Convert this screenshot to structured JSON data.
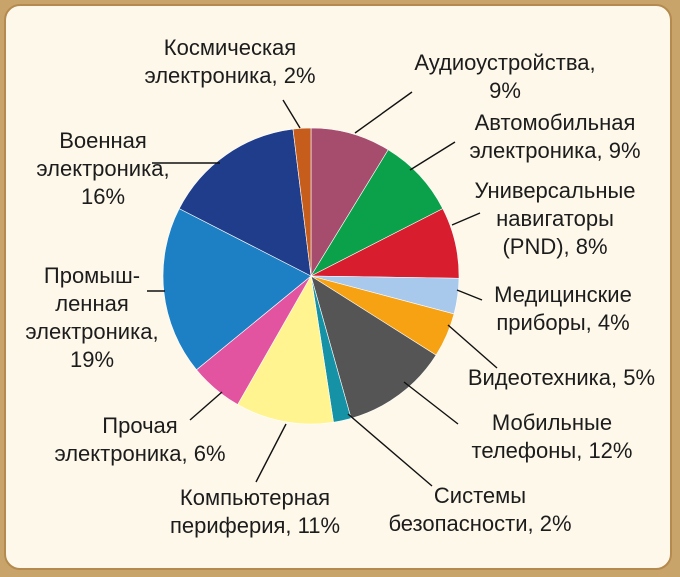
{
  "chart_data": {
    "type": "pie",
    "title": "",
    "slices": [
      {
        "label": "Аудиоустройства, 9%",
        "lines": [
          "Аудиоустройства,",
          "9%"
        ],
        "value": 9,
        "color": "#a64d6e"
      },
      {
        "label": "Автомобильная электроника, 9%",
        "lines": [
          "Автомобильная",
          "электроника, 9%"
        ],
        "value": 9,
        "color": "#0aa14a"
      },
      {
        "label": "Универсальные навигаторы (PND), 8%",
        "lines": [
          "Универсальные",
          "навигаторы",
          "(PND), 8%"
        ],
        "value": 8,
        "color": "#d81d2e"
      },
      {
        "label": "Медицинские приборы, 4%",
        "lines": [
          "Медицинские",
          "приборы, 4%"
        ],
        "value": 4,
        "color": "#a8c8ec"
      },
      {
        "label": "Видеотехника, 5%",
        "lines": [
          "Видеотехника, 5%"
        ],
        "value": 5,
        "color": "#f6a213"
      },
      {
        "label": "Мобильные телефоны, 12%",
        "lines": [
          "Мобильные",
          "телефоны, 12%"
        ],
        "value": 12,
        "color": "#555555"
      },
      {
        "label": "Системы безопасности, 2%",
        "lines": [
          "Системы",
          "безопасности, 2%"
        ],
        "value": 2,
        "color": "#1592a5"
      },
      {
        "label": "Компьютерная периферия, 11%",
        "lines": [
          "Компьютерная",
          "периферия, 11%"
        ],
        "value": 11,
        "color": "#fff48f"
      },
      {
        "label": "Прочая электроника, 6%",
        "lines": [
          "Прочая",
          "электроника, 6%"
        ],
        "value": 6,
        "color": "#e2549f"
      },
      {
        "label": "Промышленная электроника, 19%",
        "lines": [
          "Промыш-",
          "ленная",
          "электроника,",
          "19%"
        ],
        "value": 19,
        "color": "#1d7fc4"
      },
      {
        "label": "Военная электроника, 16%",
        "lines": [
          "Военная",
          "электроника,",
          "16%"
        ],
        "value": 16,
        "color": "#1f3d8a"
      },
      {
        "label": "Космическая электроника, 2%",
        "lines": [
          "Космическая",
          "электроника, 2%"
        ],
        "value": 2,
        "color": "#c65d1c"
      }
    ],
    "start": "12 o'clock",
    "direction": "clockwise",
    "legend": "none"
  }
}
